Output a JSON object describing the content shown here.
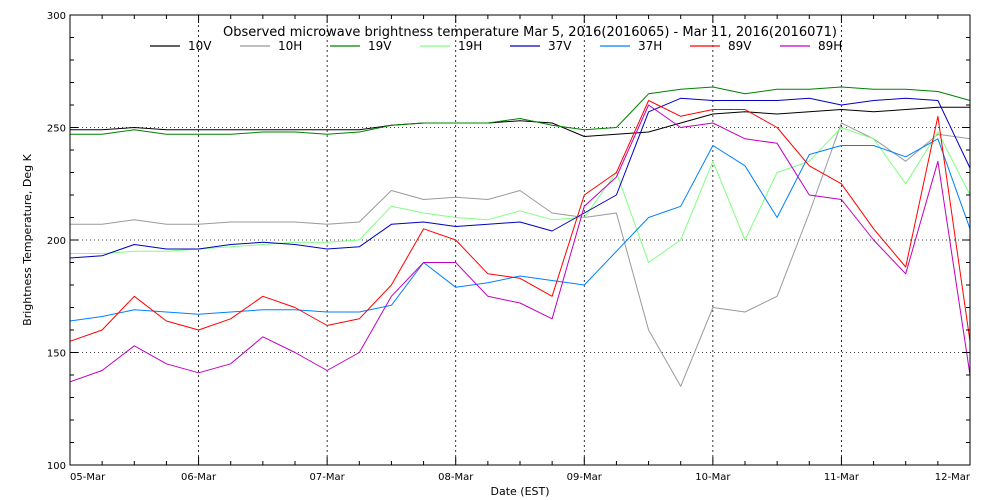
{
  "chart_data": {
    "type": "line",
    "title": "Observed microwave brightness temperature Mar  5, 2016(2016065) - Mar 11, 2016(2016071)",
    "xlabel": "Date (EST)",
    "ylabel": "Brightness Temperature, Deg K",
    "grid": true,
    "legend_position": "top",
    "xlim": [
      "2016-03-05 00:00",
      "2016-03-12 00:00"
    ],
    "ylim": [
      100,
      300
    ],
    "x_ticks": [
      "05-Mar",
      "06-Mar",
      "07-Mar",
      "08-Mar",
      "09-Mar",
      "10-Mar",
      "11-Mar",
      "12-Mar"
    ],
    "y_ticks": [
      100,
      150,
      200,
      250,
      300
    ],
    "x": [
      "2016-03-05 00:00",
      "2016-03-05 06:00",
      "2016-03-05 12:00",
      "2016-03-05 18:00",
      "2016-03-06 00:00",
      "2016-03-06 06:00",
      "2016-03-06 12:00",
      "2016-03-06 18:00",
      "2016-03-07 00:00",
      "2016-03-07 06:00",
      "2016-03-07 12:00",
      "2016-03-07 18:00",
      "2016-03-08 00:00",
      "2016-03-08 06:00",
      "2016-03-08 12:00",
      "2016-03-08 18:00",
      "2016-03-09 00:00",
      "2016-03-09 06:00",
      "2016-03-09 12:00",
      "2016-03-09 18:00",
      "2016-03-10 00:00",
      "2016-03-10 06:00",
      "2016-03-10 12:00",
      "2016-03-10 18:00",
      "2016-03-11 00:00",
      "2016-03-11 06:00",
      "2016-03-11 12:00",
      "2016-03-11 18:00",
      "2016-03-12 00:00"
    ],
    "series": [
      {
        "name": "10V",
        "color": "#000000",
        "values": [
          249,
          249,
          250,
          249,
          249,
          249,
          249,
          249,
          249,
          249,
          251,
          252,
          252,
          252,
          253,
          252,
          246,
          247,
          248,
          252,
          256,
          257,
          256,
          257,
          258,
          257,
          258,
          259,
          259
        ]
      },
      {
        "name": "10H",
        "color": "#9a9a9a",
        "values": [
          207,
          207,
          209,
          207,
          207,
          208,
          208,
          208,
          207,
          208,
          222,
          218,
          219,
          218,
          222,
          212,
          210,
          212,
          160,
          135,
          170,
          168,
          175,
          212,
          252,
          245,
          235,
          247,
          245
        ]
      },
      {
        "name": "19V",
        "color": "#008000",
        "values": [
          247,
          247,
          249,
          247,
          247,
          247,
          248,
          248,
          247,
          248,
          251,
          252,
          252,
          252,
          254,
          251,
          249,
          250,
          265,
          267,
          268,
          265,
          267,
          267,
          268,
          267,
          267,
          266,
          262
        ]
      },
      {
        "name": "19H",
        "color": "#80ff80",
        "values": [
          194,
          194,
          195,
          195,
          196,
          197,
          198,
          199,
          199,
          200,
          215,
          212,
          210,
          209,
          213,
          209,
          210,
          230,
          190,
          200,
          235,
          200,
          230,
          235,
          250,
          245,
          225,
          248,
          220
        ]
      },
      {
        "name": "37V",
        "color": "#0000c0",
        "values": [
          192,
          193,
          198,
          196,
          196,
          198,
          199,
          198,
          196,
          197,
          207,
          208,
          206,
          207,
          208,
          204,
          212,
          220,
          257,
          263,
          262,
          262,
          262,
          263,
          260,
          262,
          263,
          262,
          232
        ]
      },
      {
        "name": "37H",
        "color": "#0080ff",
        "values": [
          164,
          166,
          169,
          168,
          167,
          168,
          169,
          169,
          168,
          168,
          171,
          190,
          179,
          181,
          184,
          182,
          180,
          195,
          210,
          215,
          242,
          233,
          210,
          238,
          242,
          242,
          237,
          245,
          205
        ]
      },
      {
        "name": "89V",
        "color": "#ff0000",
        "values": [
          155,
          160,
          175,
          164,
          160,
          165,
          175,
          170,
          162,
          165,
          180,
          205,
          200,
          185,
          183,
          175,
          220,
          230,
          262,
          255,
          258,
          258,
          250,
          233,
          225,
          205,
          188,
          255,
          155
        ]
      },
      {
        "name": "89H",
        "color": "#c000c0",
        "values": [
          137,
          142,
          153,
          145,
          141,
          145,
          157,
          150,
          142,
          150,
          175,
          190,
          190,
          175,
          172,
          165,
          215,
          228,
          260,
          250,
          252,
          245,
          243,
          220,
          218,
          200,
          185,
          235,
          140
        ]
      }
    ]
  }
}
